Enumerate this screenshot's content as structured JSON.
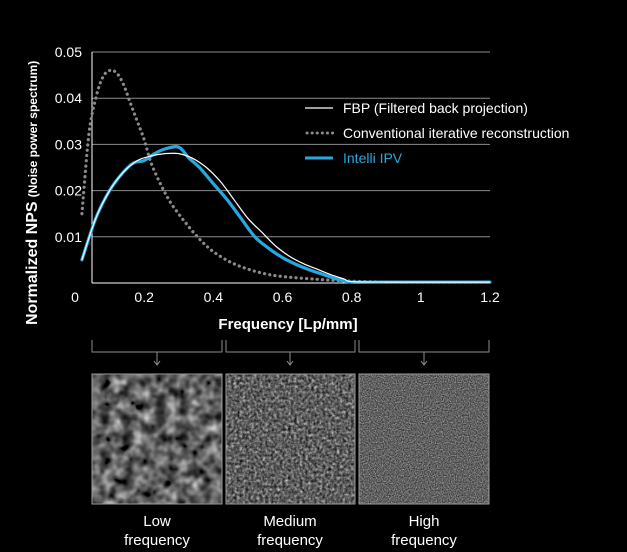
{
  "chart_data": {
    "type": "line",
    "xlabel": "Frequency [Lp/mm]",
    "ylabel_main": "Normalized NPS",
    "ylabel_sub": "(Noise power spectrum)",
    "xlim": [
      0.02,
      1.2
    ],
    "ylim": [
      0,
      0.05
    ],
    "x_ticks": [
      "0",
      "0.2",
      "0.4",
      "0.6",
      "0.8",
      "1",
      "1.2"
    ],
    "x_tick_values": [
      0,
      0.2,
      0.4,
      0.6,
      0.8,
      1.0,
      1.2
    ],
    "y_ticks": [
      "0.01",
      "0.02",
      "0.03",
      "0.04",
      "0.05"
    ],
    "y_tick_values": [
      0.01,
      0.02,
      0.03,
      0.04,
      0.05
    ],
    "grid": "horizontal",
    "legend_position": "top-right",
    "series": [
      {
        "name": "FBP (Filtered back projection)",
        "style": "solid-thin",
        "color": "#ffffff",
        "x": [
          0.02,
          0.06,
          0.1,
          0.14,
          0.18,
          0.22,
          0.26,
          0.3,
          0.34,
          0.38,
          0.42,
          0.46,
          0.5,
          0.54,
          0.58,
          0.62,
          0.66,
          0.7,
          0.74,
          0.78,
          0.8,
          0.9,
          1.0,
          1.1,
          1.2
        ],
        "values": [
          0.005,
          0.014,
          0.02,
          0.024,
          0.0265,
          0.0275,
          0.028,
          0.028,
          0.027,
          0.025,
          0.022,
          0.018,
          0.014,
          0.011,
          0.008,
          0.0058,
          0.0042,
          0.003,
          0.0018,
          0.0008,
          0.0003,
          0.0002,
          0.0002,
          0.0002,
          0.0002
        ]
      },
      {
        "name": "Conventional iterative reconstruction",
        "style": "dotted",
        "color": "#8a8a8a",
        "x": [
          0.02,
          0.04,
          0.06,
          0.08,
          0.1,
          0.12,
          0.14,
          0.16,
          0.18,
          0.2,
          0.22,
          0.25,
          0.28,
          0.32,
          0.36,
          0.4,
          0.45,
          0.5,
          0.55,
          0.6,
          0.7,
          0.8,
          0.9,
          1.0,
          1.2
        ],
        "values": [
          0.015,
          0.032,
          0.04,
          0.0445,
          0.046,
          0.0455,
          0.043,
          0.039,
          0.035,
          0.031,
          0.026,
          0.021,
          0.017,
          0.013,
          0.0095,
          0.0068,
          0.0045,
          0.003,
          0.002,
          0.0014,
          0.0008,
          0.0004,
          0.0002,
          0.0002,
          0.0002
        ]
      },
      {
        "name": "Intelli IPV",
        "style": "solid-thick",
        "color": "#29a8e0",
        "x": [
          0.02,
          0.06,
          0.1,
          0.14,
          0.17,
          0.2,
          0.23,
          0.26,
          0.3,
          0.33,
          0.36,
          0.4,
          0.44,
          0.48,
          0.52,
          0.56,
          0.6,
          0.64,
          0.68,
          0.72,
          0.76,
          0.8,
          0.9,
          1.0,
          1.2
        ],
        "values": [
          0.005,
          0.014,
          0.02,
          0.024,
          0.026,
          0.0265,
          0.028,
          0.029,
          0.0294,
          0.027,
          0.025,
          0.0215,
          0.018,
          0.014,
          0.01,
          0.0075,
          0.0055,
          0.004,
          0.0028,
          0.0018,
          0.0008,
          0.0002,
          0.0002,
          0.0002,
          0.0002
        ]
      }
    ]
  },
  "tiles": [
    {
      "label_line1": "Low",
      "label_line2": "frequency"
    },
    {
      "label_line1": "Medium",
      "label_line2": "frequency"
    },
    {
      "label_line1": "High",
      "label_line2": "frequency"
    }
  ],
  "colors": {
    "background": "#000000",
    "grid": "#8c8c8c",
    "axis": "#ffffff",
    "bracket": "#8c8c8c",
    "tile_border": "#9a9a9a"
  }
}
